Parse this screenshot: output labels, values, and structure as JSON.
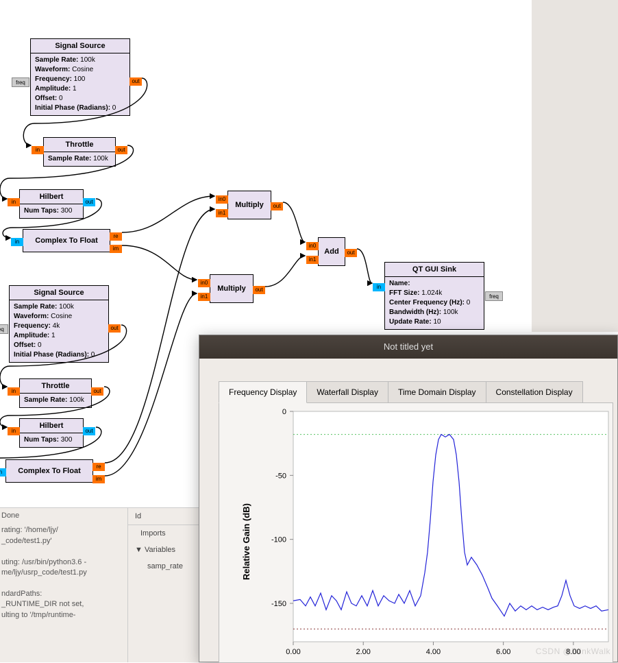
{
  "colors": {
    "block_bg": "#e8e0f0",
    "port_orange": "#ff7100",
    "port_blue": "#00b6ff",
    "port_gray": "#cccccc",
    "titlebar": "#3b342e",
    "plot_line": "#2222d8",
    "plot_bg": "#ffffff",
    "grid_green": "#55c060",
    "grid_red": "#8a3a3a"
  },
  "blocks": {
    "sig1": {
      "title": "Signal Source",
      "params": [
        {
          "k": "Sample Rate:",
          "v": "100k"
        },
        {
          "k": "Waveform:",
          "v": "Cosine"
        },
        {
          "k": "Frequency:",
          "v": "100"
        },
        {
          "k": "Amplitude:",
          "v": "1"
        },
        {
          "k": "Offset:",
          "v": "0"
        },
        {
          "k": "Initial Phase (Radians):",
          "v": "0"
        }
      ],
      "out": "out",
      "freq": "freq"
    },
    "throttle1": {
      "title": "Throttle",
      "params": [
        {
          "k": "Sample Rate:",
          "v": "100k"
        }
      ],
      "in": "in",
      "out": "out"
    },
    "hilbert1": {
      "title": "Hilbert",
      "params": [
        {
          "k": "Num Taps:",
          "v": "300"
        }
      ],
      "in": "in",
      "out": "out"
    },
    "c2f1": {
      "title": "Complex To Float",
      "in": "in",
      "re": "re",
      "im": "im"
    },
    "sig2": {
      "title": "Signal Source",
      "params": [
        {
          "k": "Sample Rate:",
          "v": "100k"
        },
        {
          "k": "Waveform:",
          "v": "Cosine"
        },
        {
          "k": "Frequency:",
          "v": "4k"
        },
        {
          "k": "Amplitude:",
          "v": "1"
        },
        {
          "k": "Offset:",
          "v": "0"
        },
        {
          "k": "Initial Phase (Radians):",
          "v": "0"
        }
      ],
      "out": "out",
      "freq": "freq"
    },
    "throttle2": {
      "title": "Throttle",
      "params": [
        {
          "k": "Sample Rate:",
          "v": "100k"
        }
      ],
      "in": "in",
      "out": "out"
    },
    "hilbert2": {
      "title": "Hilbert",
      "params": [
        {
          "k": "Num Taps:",
          "v": "300"
        }
      ],
      "in": "in",
      "out": "out"
    },
    "c2f2": {
      "title": "Complex To Float",
      "in": "in",
      "re": "re",
      "im": "im"
    },
    "mult1": {
      "title": "Multiply",
      "in0": "in0",
      "in1": "in1",
      "out": "out"
    },
    "mult2": {
      "title": "Multiply",
      "in0": "in0",
      "in1": "in1",
      "out": "out"
    },
    "add": {
      "title": "Add",
      "in0": "in0",
      "in1": "in1",
      "out": "out"
    },
    "sink": {
      "title": "QT GUI Sink",
      "params": [
        {
          "k": "Name:",
          "v": ""
        },
        {
          "k": "FFT Size:",
          "v": "1.024k"
        },
        {
          "k": "Center Frequency (Hz):",
          "v": "0"
        },
        {
          "k": "Bandwidth (Hz):",
          "v": "100k"
        },
        {
          "k": "Update Rate:",
          "v": "10"
        }
      ],
      "in": "in",
      "freq": "freq"
    }
  },
  "console": {
    "done": "Done",
    "lines": [
      "rating: '/home/ljy/",
      "_code/test1.py'",
      "",
      "uting: /usr/bin/python3.6 -",
      "me/ljy/usrp_code/test1.py",
      "",
      "ndardPaths:",
      "_RUNTIME_DIR not set,",
      "ulting to '/tmp/runtime-"
    ]
  },
  "inspector": {
    "id": "Id",
    "imports": "Imports",
    "variables": "Variables",
    "item": "samp_rate"
  },
  "gui": {
    "title": "Not titled yet",
    "tabs": [
      "Frequency Display",
      "Waterfall Display",
      "Time Domain Display",
      "Constellation Display"
    ],
    "active_tab": 0,
    "ylabel": "Relative Gain (dB)",
    "legend": "D",
    "yaxis": {
      "min": -180,
      "max": 0,
      "step": 50,
      "ticks": [
        "0",
        "-50",
        "-100",
        "-150"
      ]
    },
    "xaxis": {
      "ticks": [
        "0.00",
        "2.00",
        "4.00",
        "6.00",
        "8.00"
      ]
    },
    "ref_lines": {
      "green_y": -18,
      "red_y": -170
    },
    "series": {
      "color": "#2222d8",
      "points": [
        [
          0,
          -148
        ],
        [
          10,
          -147
        ],
        [
          18,
          -152
        ],
        [
          25,
          -145
        ],
        [
          32,
          -152
        ],
        [
          40,
          -142
        ],
        [
          48,
          -155
        ],
        [
          56,
          -144
        ],
        [
          63,
          -148
        ],
        [
          70,
          -155
        ],
        [
          78,
          -141
        ],
        [
          85,
          -150
        ],
        [
          92,
          -152
        ],
        [
          100,
          -144
        ],
        [
          108,
          -152
        ],
        [
          116,
          -140
        ],
        [
          124,
          -152
        ],
        [
          132,
          -144
        ],
        [
          140,
          -148
        ],
        [
          148,
          -150
        ],
        [
          154,
          -143
        ],
        [
          162,
          -150
        ],
        [
          170,
          -140
        ],
        [
          178,
          -152
        ],
        [
          186,
          -144
        ],
        [
          192,
          -126
        ],
        [
          196,
          -110
        ],
        [
          200,
          -85
        ],
        [
          204,
          -55
        ],
        [
          208,
          -34
        ],
        [
          212,
          -22
        ],
        [
          216,
          -18
        ],
        [
          222,
          -20
        ],
        [
          228,
          -18
        ],
        [
          234,
          -22
        ],
        [
          238,
          -34
        ],
        [
          242,
          -55
        ],
        [
          246,
          -85
        ],
        [
          250,
          -110
        ],
        [
          254,
          -120
        ],
        [
          260,
          -114
        ],
        [
          268,
          -120
        ],
        [
          276,
          -128
        ],
        [
          284,
          -138
        ],
        [
          290,
          -146
        ],
        [
          298,
          -152
        ],
        [
          308,
          -160
        ],
        [
          316,
          -150
        ],
        [
          324,
          -156
        ],
        [
          332,
          -152
        ],
        [
          340,
          -155
        ],
        [
          348,
          -152
        ],
        [
          356,
          -155
        ],
        [
          364,
          -153
        ],
        [
          372,
          -155
        ],
        [
          380,
          -153
        ],
        [
          386,
          -152
        ],
        [
          392,
          -144
        ],
        [
          398,
          -132
        ],
        [
          404,
          -144
        ],
        [
          410,
          -152
        ],
        [
          418,
          -154
        ],
        [
          426,
          -152
        ],
        [
          434,
          -154
        ],
        [
          442,
          -152
        ],
        [
          450,
          -156
        ],
        [
          460,
          -155
        ]
      ]
    },
    "plot_x_domain": [
      0,
      9.5
    ],
    "watermark": "CSDN @BlinkWalk"
  }
}
